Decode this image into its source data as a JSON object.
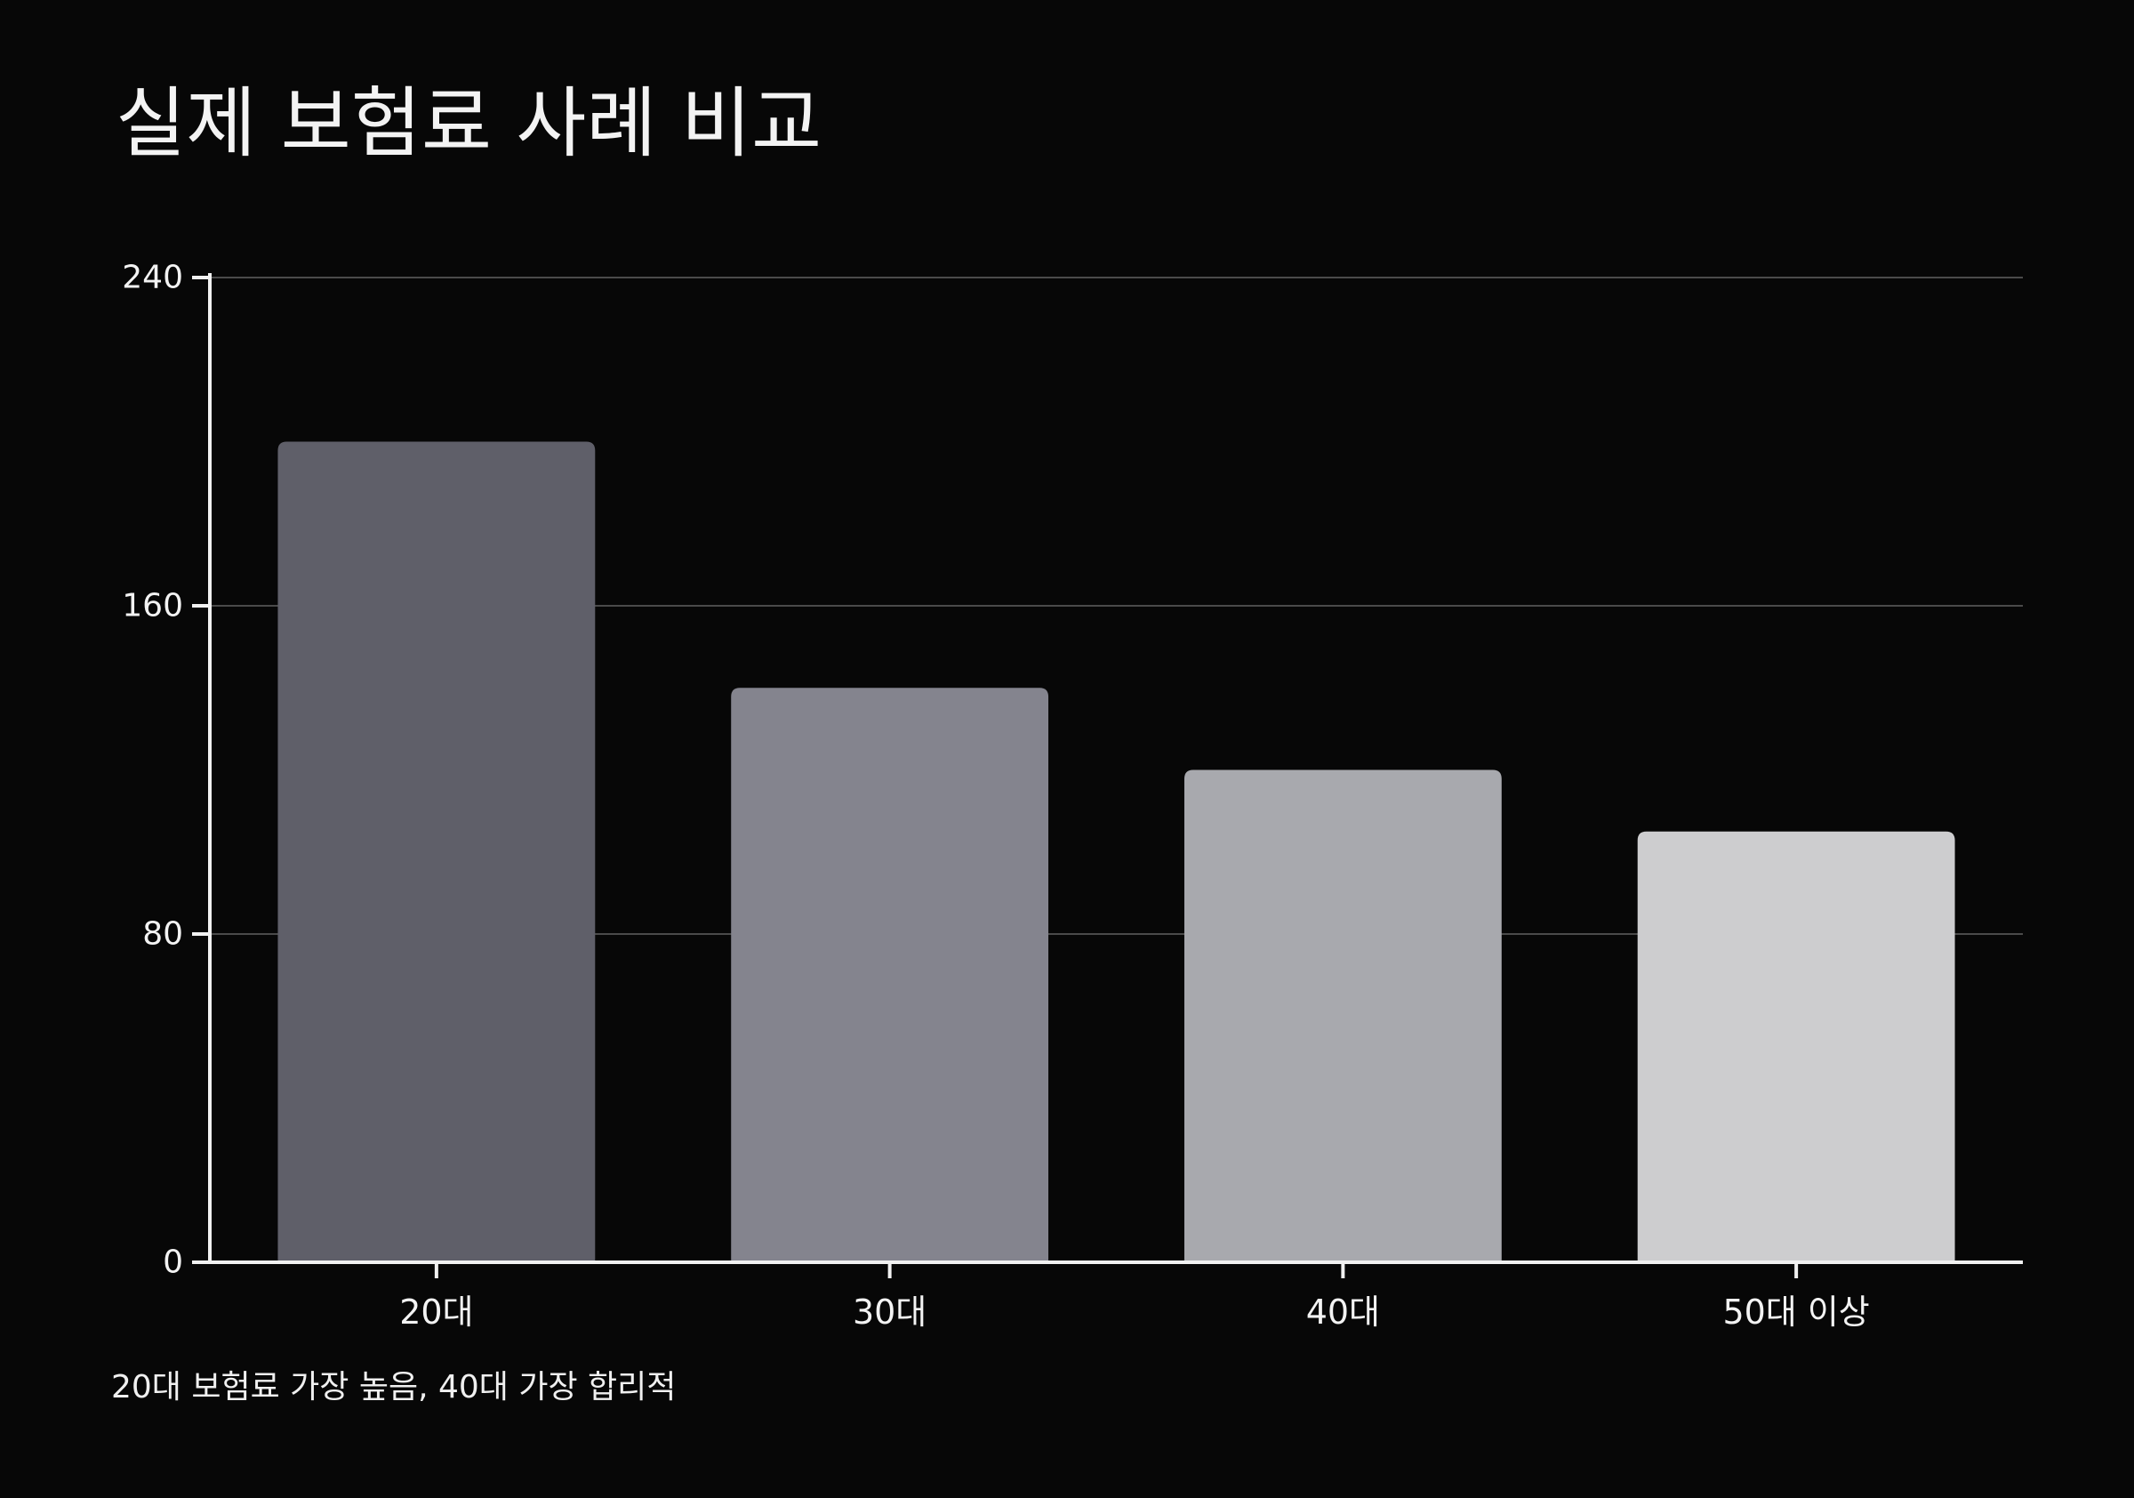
{
  "chart_data": {
    "type": "bar",
    "title": "실제 보험료 사례 비교",
    "caption": "20대 보험료 가장 높음, 40대 가장 합리적",
    "categories": [
      "20대",
      "30대",
      "40대",
      "50대 이상"
    ],
    "values": [
      200,
      140,
      120,
      105
    ],
    "ylim": [
      0,
      240
    ],
    "yticks": [
      0,
      80,
      160,
      240
    ],
    "ytick_labels": [
      "0",
      "80",
      "160",
      "240"
    ],
    "xlabel": "",
    "ylabel": "",
    "grid": true,
    "colors": {
      "background": "#070707",
      "bars": [
        "#5f5f69",
        "#84848e",
        "#a8a9ae",
        "#cdcdcf"
      ],
      "axis": "#f1f1f1",
      "grid": "#4a4a4a",
      "text": "#f3f3f3"
    }
  }
}
